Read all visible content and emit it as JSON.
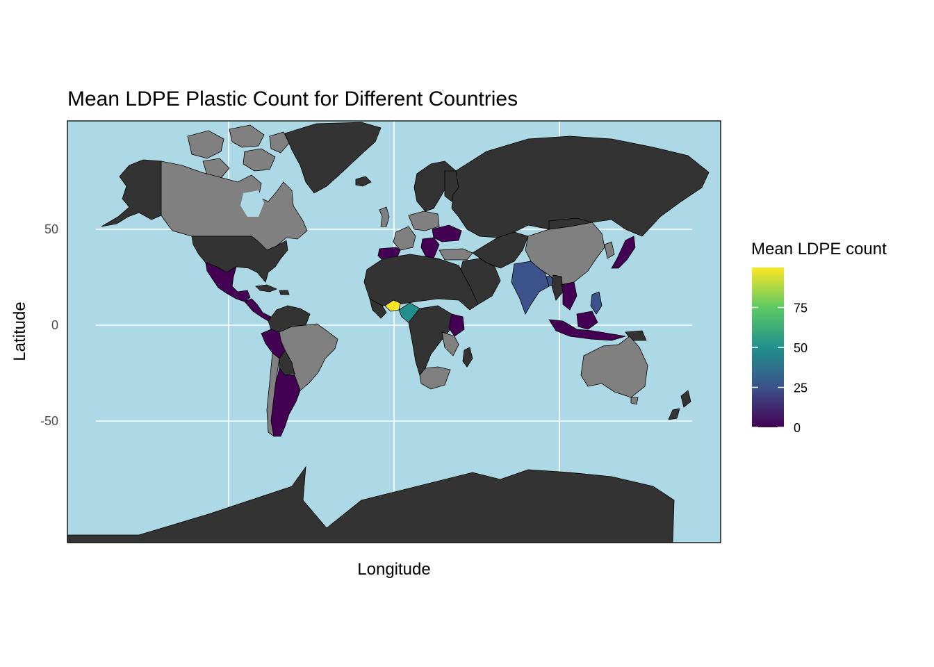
{
  "chart_data": {
    "type": "choropleth-map",
    "title": "Mean LDPE Plastic Count for Different Countries",
    "xlabel": "Longitude",
    "ylabel": "Latitude",
    "y_ticks": [
      50,
      0,
      -50
    ],
    "y_tick_labels": [
      "50",
      "0",
      "-50"
    ],
    "xlim": [
      -180,
      180
    ],
    "ylim": [
      -90,
      90
    ],
    "grid": true,
    "legend": {
      "title": "Mean LDPE count",
      "position": "right",
      "min": 0,
      "max": 100,
      "ticks": [
        0,
        25,
        50,
        75
      ],
      "tick_labels": [
        "0",
        "25",
        "50",
        "75"
      ],
      "palette": "viridis"
    },
    "colors": {
      "ocean": "#add8e6",
      "land_no_data": "#333333",
      "land_grey": "#808080",
      "border": "#000000",
      "grid": "#ffffff",
      "viridis": [
        "#440154",
        "#3b528b",
        "#21908c",
        "#5dc963",
        "#fde725"
      ]
    },
    "countries_with_data": [
      {
        "name": "Nigeria",
        "value": 99
      },
      {
        "name": "Cameroon",
        "value": 45
      },
      {
        "name": "India",
        "value": 18
      },
      {
        "name": "Bangladesh",
        "value": 15
      },
      {
        "name": "Kenya",
        "value": 8
      },
      {
        "name": "Philippines",
        "value": 10
      },
      {
        "name": "Indonesia",
        "value": 6
      },
      {
        "name": "Peru",
        "value": 6
      },
      {
        "name": "Japan",
        "value": 3
      },
      {
        "name": "Mexico",
        "value": 3
      },
      {
        "name": "Argentina",
        "value": 2
      },
      {
        "name": "Spain",
        "value": 2
      },
      {
        "name": "Ukraine",
        "value": 2
      },
      {
        "name": "Thailand",
        "value": 2
      },
      {
        "name": "Vietnam",
        "value": 3
      },
      {
        "name": "Greece",
        "value": 2
      }
    ]
  }
}
